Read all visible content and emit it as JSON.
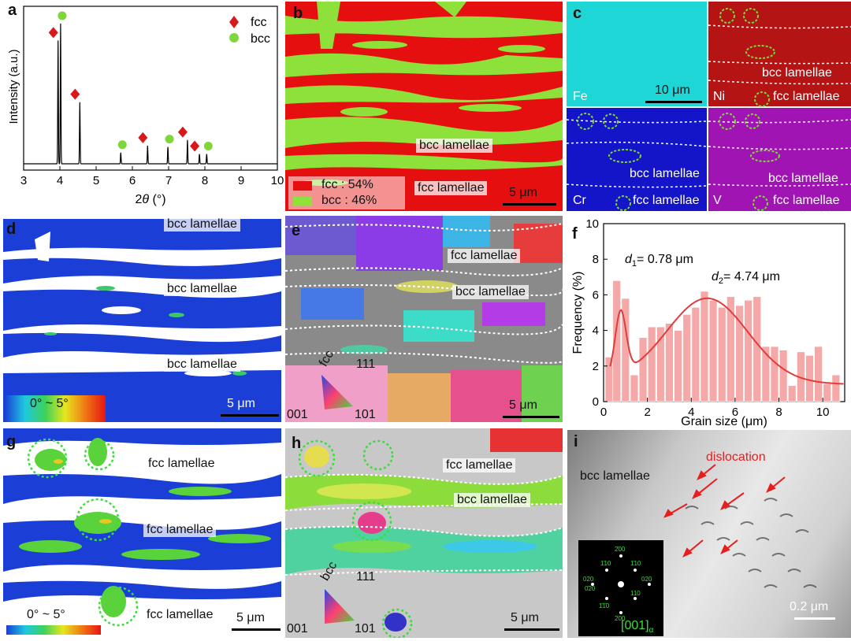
{
  "panels": {
    "a": {
      "label": "a",
      "legend": [
        "fcc",
        "bcc"
      ],
      "xlabel_main": "2",
      "xlabel_theta": "θ",
      "xlabel_unit": " (°)",
      "ylabel": "Intensity (a.u.)",
      "xticks": [
        "3",
        "4",
        "5",
        "6",
        "7",
        "8",
        "9",
        "10"
      ]
    },
    "b": {
      "label": "b",
      "bcc_label": "bcc lamellae",
      "fcc_label": "fcc lamellae",
      "legend_fcc": "fcc : 54%",
      "legend_bcc": "bcc : 46%",
      "scale": "5 μm"
    },
    "c": {
      "label": "c",
      "fe": "Fe",
      "ni": "Ni",
      "cr": "Cr",
      "v": "V",
      "scale": "10 μm",
      "bcc_label": "bcc lamellae",
      "fcc_label": "fcc lamellae"
    },
    "d": {
      "label": "d",
      "lamellae_top": "bcc lamellae",
      "lamellae_mid": "bcc lamellae",
      "lamellae_low": "bcc lamellae",
      "colorbar": "0° ~ 5°",
      "scale": "5 μm"
    },
    "e": {
      "label": "e",
      "fcc_label": "fcc lamellae",
      "bcc_label": "bcc lamellae",
      "ipf_phase": "fcc",
      "ipf_111": "111",
      "ipf_001": "001",
      "ipf_101": "101",
      "scale": "5 μm"
    },
    "f": {
      "label": "f",
      "d1_label": "d",
      "d1_sub": "1",
      "d1_value": "= 0.78 μm",
      "d2_label": "d",
      "d2_sub": "2",
      "d2_value": "= 4.74 μm",
      "xlabel": "Grain size (μm)",
      "ylabel": "Frequency (%)",
      "xticks": [
        "0",
        "2",
        "4",
        "6",
        "8",
        "10"
      ],
      "yticks": [
        "0",
        "2",
        "4",
        "6",
        "8",
        "10"
      ]
    },
    "g": {
      "label": "g",
      "lamellae_top": "fcc lamellae",
      "lamellae_mid": "fcc lamellae",
      "lamellae_low": "fcc lamellae",
      "colorbar": "0° ~ 5°",
      "scale": "5 μm"
    },
    "h": {
      "label": "h",
      "fcc_label": "fcc lamellae",
      "bcc_label": "bcc lamellae",
      "ipf_phase": "bcc",
      "ipf_111": "111",
      "ipf_001": "001",
      "ipf_101": "101",
      "scale": "5 μm"
    },
    "i": {
      "label": "i",
      "bcc_label": "bcc lamellae",
      "dislocation": "dislocation",
      "scale": "0.2 μm",
      "saed_zone": "[001]",
      "saed_sub": "α",
      "saed_spots": [
        "2̄00",
        "1̄10",
        "020",
        "1̄10",
        "110",
        "020",
        "0̄20",
        "1̄1̄0",
        "200"
      ]
    }
  },
  "chart_data": [
    {
      "type": "line",
      "title": "",
      "xlabel": "2θ (°)",
      "ylabel": "Intensity (a.u.)",
      "xlim": [
        3,
        10
      ],
      "series": [
        {
          "name": "fcc",
          "x": [
            3.95,
            4.55,
            6.42,
            7.52,
            7.85
          ],
          "y": [
            0.88,
            0.44,
            0.13,
            0.17,
            0.07
          ]
        },
        {
          "name": "bcc",
          "x": [
            4.02,
            5.68,
            6.98,
            8.05
          ],
          "y": [
            1.0,
            0.08,
            0.12,
            0.07
          ]
        }
      ]
    },
    {
      "type": "bar",
      "title": "",
      "xlabel": "Grain size (μm)",
      "ylabel": "Frequency (%)",
      "xlim": [
        0,
        11
      ],
      "ylim": [
        0,
        10
      ],
      "x": [
        0.25,
        0.6,
        1.0,
        1.4,
        1.8,
        2.2,
        2.6,
        3.0,
        3.4,
        3.8,
        4.2,
        4.6,
        5.0,
        5.4,
        5.8,
        6.2,
        6.6,
        7.0,
        7.4,
        7.8,
        8.2,
        8.6,
        9.0,
        9.4,
        9.8,
        10.2,
        10.6
      ],
      "values": [
        2.5,
        6.8,
        5.8,
        1.5,
        3.6,
        4.2,
        4.2,
        4.4,
        4.0,
        4.9,
        5.3,
        6.2,
        5.7,
        5.3,
        5.9,
        5.4,
        5.7,
        5.9,
        3.1,
        3.1,
        2.9,
        0.9,
        2.8,
        2.6,
        3.1,
        1.0,
        1.5
      ],
      "fit_peaks": [
        0.78,
        4.74
      ]
    }
  ]
}
